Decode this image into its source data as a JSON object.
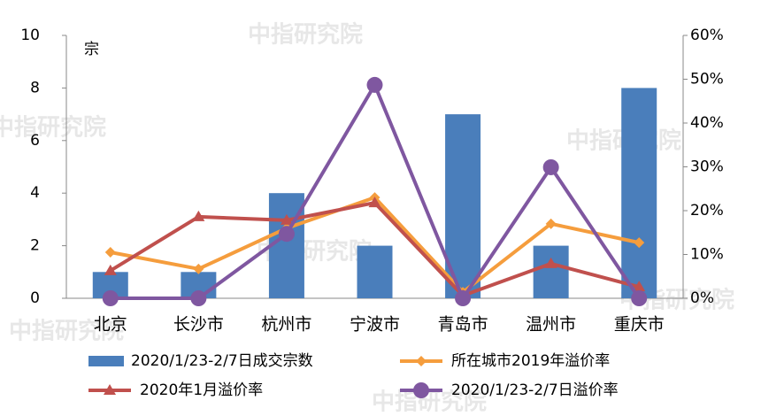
{
  "chart_data": {
    "type": "combo",
    "watermark": "中指研究院",
    "y_unit": "宗",
    "categories": [
      "北京",
      "长沙市",
      "杭州市",
      "宁波市",
      "青岛市",
      "温州市",
      "重庆市"
    ],
    "ylim": [
      0,
      10
    ],
    "yticks": [
      0,
      2,
      4,
      6,
      8,
      10
    ],
    "y2lim": [
      0,
      60
    ],
    "y2ticks": [
      {
        "value": 0,
        "label": "0%"
      },
      {
        "value": 10,
        "label": "10%"
      },
      {
        "value": 20,
        "label": "20%"
      },
      {
        "value": 30,
        "label": "30%"
      },
      {
        "value": 40,
        "label": "40%"
      },
      {
        "value": 50,
        "label": "50%"
      },
      {
        "value": 60,
        "label": "60%"
      }
    ],
    "grid": false,
    "series": [
      {
        "name": "2020/1/23-2/7日成交宗数",
        "type": "bar",
        "color": "#4a7ebb",
        "values": [
          1,
          1,
          4,
          2,
          7,
          2,
          8
        ]
      },
      {
        "name": "所在城市2019年溢价率",
        "type": "line",
        "axis": "y2",
        "marker": "diamond",
        "color": "#f59d3d",
        "values": [
          10.5,
          6.7,
          16,
          23,
          1.4,
          17,
          12.7
        ]
      },
      {
        "name": "2020年1月溢价率",
        "type": "line",
        "axis": "y2",
        "marker": "triangle",
        "color": "#c0504d",
        "values": [
          6.3,
          18.6,
          17.8,
          21.8,
          0.6,
          7.9,
          2.6
        ]
      },
      {
        "name": "2020/1/23-2/7日溢价率",
        "type": "line",
        "axis": "y2",
        "marker": "circle",
        "color": "#7f57a0",
        "values": [
          0,
          0,
          14.7,
          48.7,
          0,
          29.9,
          0
        ]
      }
    ]
  }
}
